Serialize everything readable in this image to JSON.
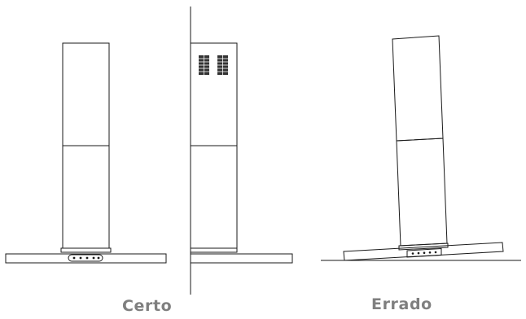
{
  "captions": {
    "correct": "Certo",
    "wrong": "Errado"
  },
  "colors": {
    "line": "#1a1a1a",
    "vent": "#333333",
    "caption": "#7f7f7f",
    "background": "#ffffff"
  }
}
